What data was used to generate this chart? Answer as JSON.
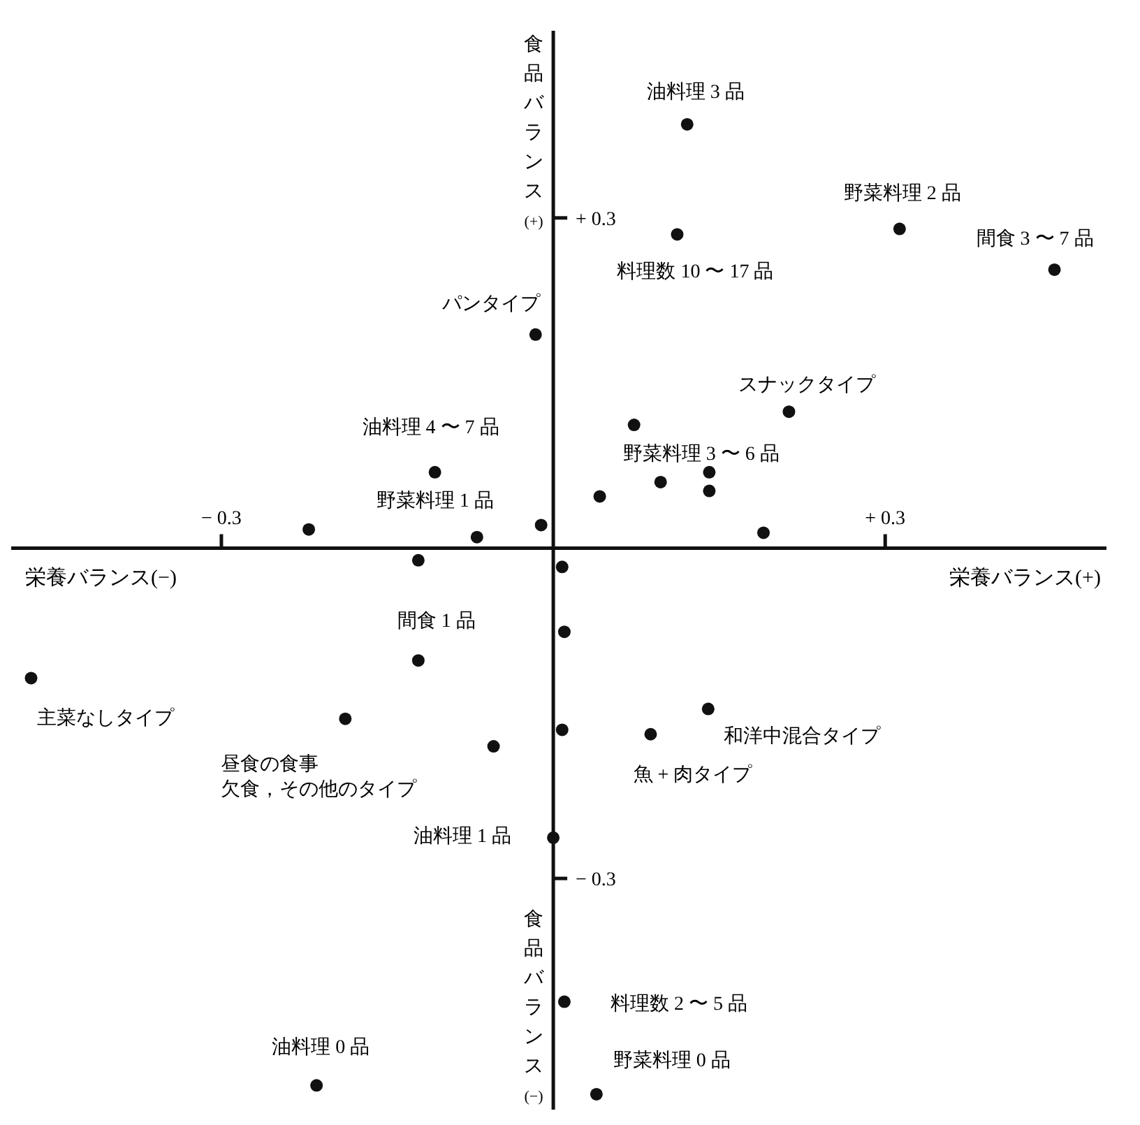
{
  "chart_data": {
    "type": "scatter",
    "xlim": [
      -0.49,
      0.5
    ],
    "ylim": [
      -0.51,
      0.47
    ],
    "xlabel": "栄養バランス(+)",
    "ylabel": "食品バランス(+)",
    "xticks": [
      {
        "value": -0.3,
        "label": "− 0.3"
      },
      {
        "value": 0.3,
        "label": "+ 0.3"
      }
    ],
    "yticks": [
      {
        "value": 0.3,
        "label": "+ 0.3"
      },
      {
        "value": -0.3,
        "label": "− 0.3"
      }
    ],
    "marker": "circle",
    "series": [
      {
        "color": "#111111",
        "x": [
          0.121,
          0.313,
          0.453,
          0.112,
          -0.016,
          0.213,
          -0.107,
          0.073,
          0.141,
          0.097,
          0.141,
          0.042,
          -0.069,
          -0.221,
          -0.011,
          0.19,
          -0.122,
          0.008,
          0.01,
          -0.122,
          -0.472,
          -0.188,
          -0.054,
          0.008,
          0.14,
          0.088,
          0.0,
          0.01,
          -0.214,
          0.039
        ],
        "values": [
          0.385,
          0.29,
          0.253,
          0.285,
          0.194,
          0.124,
          0.069,
          0.112,
          0.069,
          0.06,
          0.052,
          0.047,
          0.01,
          0.017,
          0.021,
          0.014,
          -0.011,
          -0.017,
          -0.076,
          -0.102,
          -0.118,
          -0.155,
          -0.18,
          -0.165,
          -0.146,
          -0.169,
          -0.263,
          -0.412,
          -0.488,
          -0.496
        ]
      }
    ],
    "annotations": [
      {
        "text": "油料理 3 品",
        "x": 0.121,
        "y": 0.385
      },
      {
        "text": "野菜料理 2 品",
        "x": 0.313,
        "y": 0.29
      },
      {
        "text": "間食 3 〜 7 品",
        "x": 0.453,
        "y": 0.253
      },
      {
        "text": "料理数 10 〜 17 品",
        "x": 0.112,
        "y": 0.285
      },
      {
        "text": "パンタイプ",
        "x": -0.016,
        "y": 0.194
      },
      {
        "text": "スナックタイプ",
        "x": 0.213,
        "y": 0.124
      },
      {
        "text": "油料理 4 〜 7 品",
        "x": -0.107,
        "y": 0.069
      },
      {
        "text": "野菜料理 3 〜 6 品",
        "x": 0.073,
        "y": 0.112
      },
      {
        "text": "野菜料理 1 品",
        "x": -0.069,
        "y": 0.01
      },
      {
        "text": "間食 1 品",
        "x": -0.122,
        "y": -0.102
      },
      {
        "text": "主菜なしタイプ",
        "x": -0.472,
        "y": -0.118
      },
      {
        "text": "昼食の食事欠食，その他のタイプ",
        "x": -0.188,
        "y": -0.155
      },
      {
        "text": "和洋中混合タイプ",
        "x": 0.14,
        "y": -0.146
      },
      {
        "text": "魚 + 肉タイプ",
        "x": 0.088,
        "y": -0.169
      },
      {
        "text": "油料理 1 品",
        "x": 0.0,
        "y": -0.263
      },
      {
        "text": "料理数 2 〜 5 品",
        "x": 0.01,
        "y": -0.412
      },
      {
        "text": "油料理 0 品",
        "x": -0.214,
        "y": -0.488
      },
      {
        "text": "野菜料理 0 品",
        "x": 0.039,
        "y": -0.496
      },
      "栄養バランス(−)",
      "食品バランス(−)"
    ]
  }
}
